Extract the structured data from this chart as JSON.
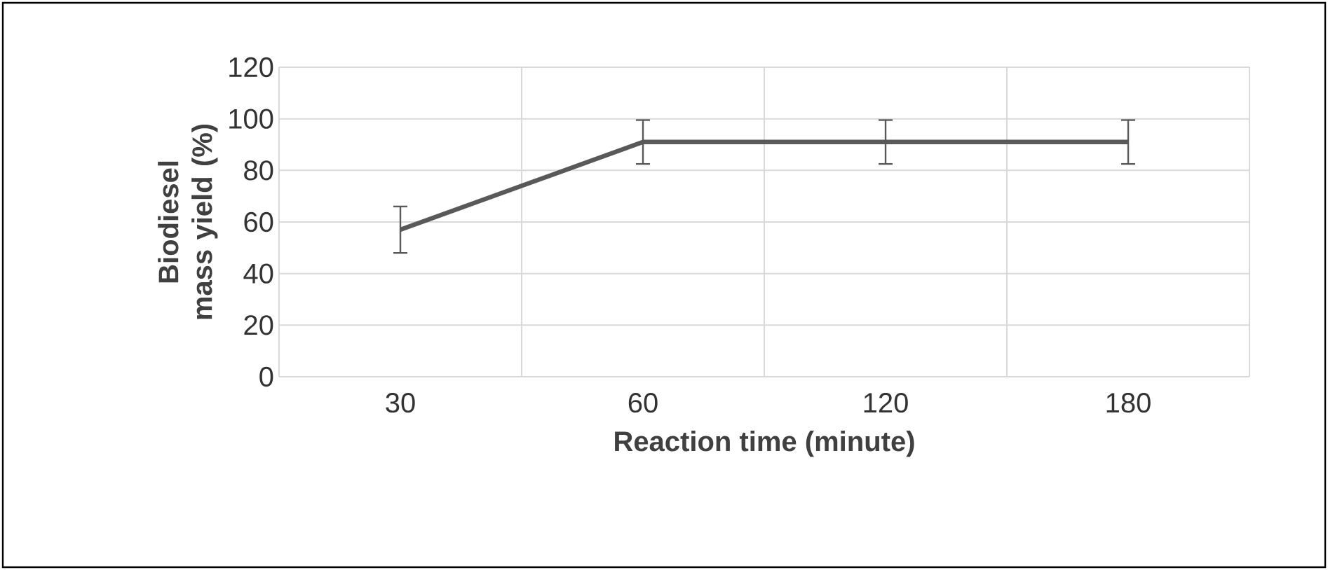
{
  "chart_data": {
    "type": "line",
    "xlabel": "Reaction time (minute)",
    "ylabel": "Biodiesel mass yield (%)",
    "categories": [
      "30",
      "60",
      "120",
      "180"
    ],
    "series": [
      {
        "color": "#595959",
        "values": [
          57,
          91,
          91,
          91
        ],
        "errors": [
          9,
          8.5,
          8.5,
          8.5
        ]
      }
    ],
    "ylim": [
      0,
      120
    ],
    "yticks": [
      0,
      20,
      40,
      60,
      80,
      100,
      120
    ],
    "grid": true,
    "marker": "none",
    "line_style": "solid"
  }
}
